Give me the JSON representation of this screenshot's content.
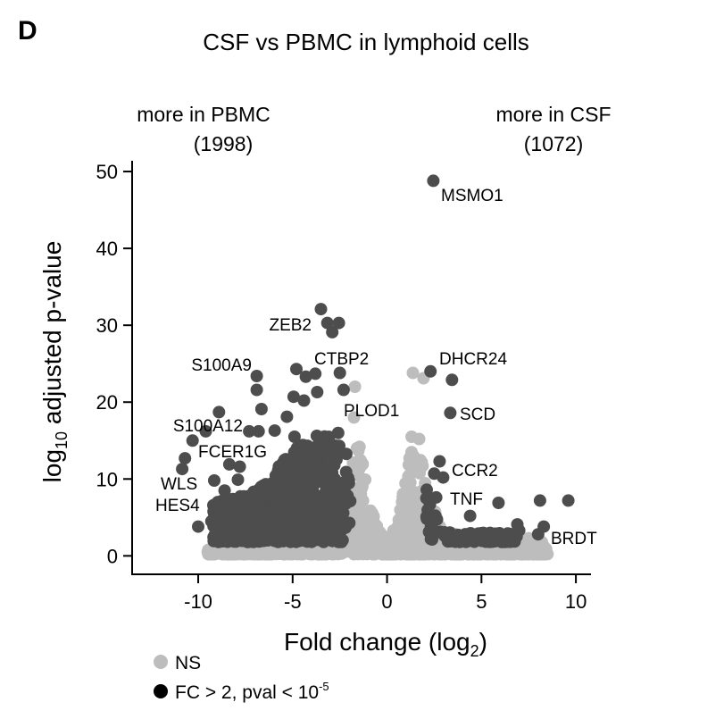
{
  "panel_letter": "D",
  "chart_data": {
    "type": "scatter",
    "title": "CSF vs PBMC in lymphoid cells",
    "annotations": {
      "left": {
        "text": "more in PBMC",
        "count": "(1998)"
      },
      "right": {
        "text": "more in CSF",
        "count": "(1072)"
      }
    },
    "xlabel": "Fold change (log",
    "xlabel_sub": "2",
    "xlabel_end": ")",
    "ylabel_pre": "log",
    "ylabel_sub": "10",
    "ylabel_post": " adjusted p-value",
    "xlim": [
      -13.5,
      10.8
    ],
    "ylim": [
      -2.4,
      51.4
    ],
    "xticks": [
      -10,
      -5,
      0,
      5,
      10
    ],
    "xtick_labels": [
      "-10",
      "-5",
      "0",
      "5",
      "10"
    ],
    "yticks": [
      0,
      10,
      20,
      30,
      40,
      50
    ],
    "ytick_labels": [
      "0",
      "10",
      "20",
      "30",
      "40",
      "50"
    ],
    "grid": false,
    "legend": {
      "placement": "bottom-left",
      "entries": [
        {
          "label": "NS",
          "color": "#bdbdbd"
        },
        {
          "label": "FC > 2, pval < 10",
          "sup": "-5",
          "color": "#000000"
        }
      ]
    },
    "colors": {
      "ns": "#bdbdbd",
      "sig": "#4d4d4d"
    },
    "series": [
      {
        "name": "NS",
        "color": "#bdbdbd",
        "points": [
          [
            -1.7,
            22
          ],
          [
            -1.75,
            18
          ],
          [
            1.37,
            23.8
          ],
          [
            1.93,
            23.1
          ],
          [
            1.3,
            15.5
          ],
          [
            1.7,
            15.2
          ],
          [
            1.4,
            13
          ],
          [
            1.6,
            11.5
          ],
          [
            -1.6,
            14
          ],
          [
            -1.3,
            12
          ],
          [
            7.5,
            2.3
          ],
          [
            8.2,
            1.8
          ],
          [
            6.8,
            1.9
          ]
        ],
        "cloud_envelope": [
          [
            -9.5,
            1.2
          ],
          [
            -8,
            1.3
          ],
          [
            -6,
            1.6
          ],
          [
            -4,
            2.5
          ],
          [
            -2.2,
            6
          ],
          [
            -1.8,
            13
          ],
          [
            -1.5,
            14.5
          ],
          [
            -1.1,
            10
          ],
          [
            -0.6,
            4
          ],
          [
            0,
            1.4
          ],
          [
            0.5,
            4
          ],
          [
            1.0,
            10
          ],
          [
            1.3,
            15
          ],
          [
            1.8,
            13
          ],
          [
            2.1,
            8
          ],
          [
            3,
            3
          ],
          [
            5,
            2
          ],
          [
            7,
            1.6
          ],
          [
            8.5,
            1
          ]
        ],
        "cloud_count": 1600
      },
      {
        "name": "FC > 2, pval < 10^-5",
        "color": "#4d4d4d",
        "points": [
          [
            2.45,
            48.8
          ],
          [
            -3.5,
            32.1
          ],
          [
            -3.16,
            30.3
          ],
          [
            -2.55,
            30.3
          ],
          [
            -2.9,
            29.1
          ],
          [
            -4.8,
            24.3
          ],
          [
            -4.3,
            23.3
          ],
          [
            -3.8,
            23.7
          ],
          [
            -2.5,
            23.8
          ],
          [
            -2.3,
            21.6
          ],
          [
            -3.7,
            21.3
          ],
          [
            -4.95,
            20.7
          ],
          [
            -4.4,
            20.2
          ],
          [
            -6.9,
            23.4
          ],
          [
            -6.9,
            21.6
          ],
          [
            -6.65,
            19.1
          ],
          [
            -8.9,
            18.7
          ],
          [
            -9.6,
            16.2
          ],
          [
            -10.3,
            15
          ],
          [
            -10.7,
            12.7
          ],
          [
            -10.85,
            11.3
          ],
          [
            -10,
            3.8
          ],
          [
            -7.3,
            16.2
          ],
          [
            -6.8,
            16.2
          ],
          [
            -5.3,
            18.1
          ],
          [
            -5.95,
            16.3
          ],
          [
            -4.9,
            15.5
          ],
          [
            -9.15,
            9.8
          ],
          [
            -8.35,
            11.9
          ],
          [
            -7.8,
            11.6
          ],
          [
            -7.9,
            9.9
          ],
          [
            -8.6,
            8.5
          ],
          [
            -9.0,
            6.5
          ],
          [
            -9.3,
            4.5
          ],
          [
            -8.7,
            3
          ],
          [
            -8.2,
            5.5
          ],
          [
            2.3,
            24
          ],
          [
            3.44,
            22.9
          ],
          [
            3.35,
            18.6
          ],
          [
            2.78,
            12.3
          ],
          [
            2.5,
            10.7
          ],
          [
            2.97,
            10.2
          ],
          [
            2.1,
            8.6
          ],
          [
            2.6,
            7.6
          ],
          [
            4.4,
            5.2
          ],
          [
            5.9,
            6.9
          ],
          [
            8.1,
            7.2
          ],
          [
            9.6,
            7.2
          ],
          [
            6.9,
            4.1
          ],
          [
            8.3,
            3.8
          ],
          [
            8.0,
            2.8
          ],
          [
            5.0,
            2.8
          ],
          [
            5.5,
            2.6
          ],
          [
            6.3,
            2.7
          ],
          [
            4.2,
            2.7
          ],
          [
            3.5,
            2.6
          ],
          [
            7.0,
            3.3
          ]
        ],
        "cloud_regions": [
          {
            "x": [
              -9.2,
              -1.9
            ],
            "envelope": [
              [
                -9.2,
                7
              ],
              [
                -8,
                7.5
              ],
              [
                -7,
                8.5
              ],
              [
                -6,
                10
              ],
              [
                -5.5,
                13
              ],
              [
                -4.5,
                14.5
              ],
              [
                -3.5,
                16
              ],
              [
                -2.5,
                16
              ],
              [
                -1.9,
                15
              ]
            ],
            "ymin": 1.8,
            "count": 900
          },
          {
            "x": [
              1.9,
              6.9
            ],
            "envelope": [
              [
                1.9,
                9
              ],
              [
                2.4,
                6
              ],
              [
                3,
                3.2
              ],
              [
                5,
                3
              ],
              [
                6.9,
                3
              ]
            ],
            "ymin": 1.8,
            "count": 140
          }
        ]
      }
    ],
    "point_labels": [
      "MSMO1",
      "ZEB2",
      "S100A9",
      "CTBP2",
      "DHCR24",
      "PLOD1",
      "SCD",
      "S100A12",
      "FCER1G",
      "CCR2",
      "WLS",
      "TNF",
      "HES4",
      "BRDT"
    ]
  }
}
